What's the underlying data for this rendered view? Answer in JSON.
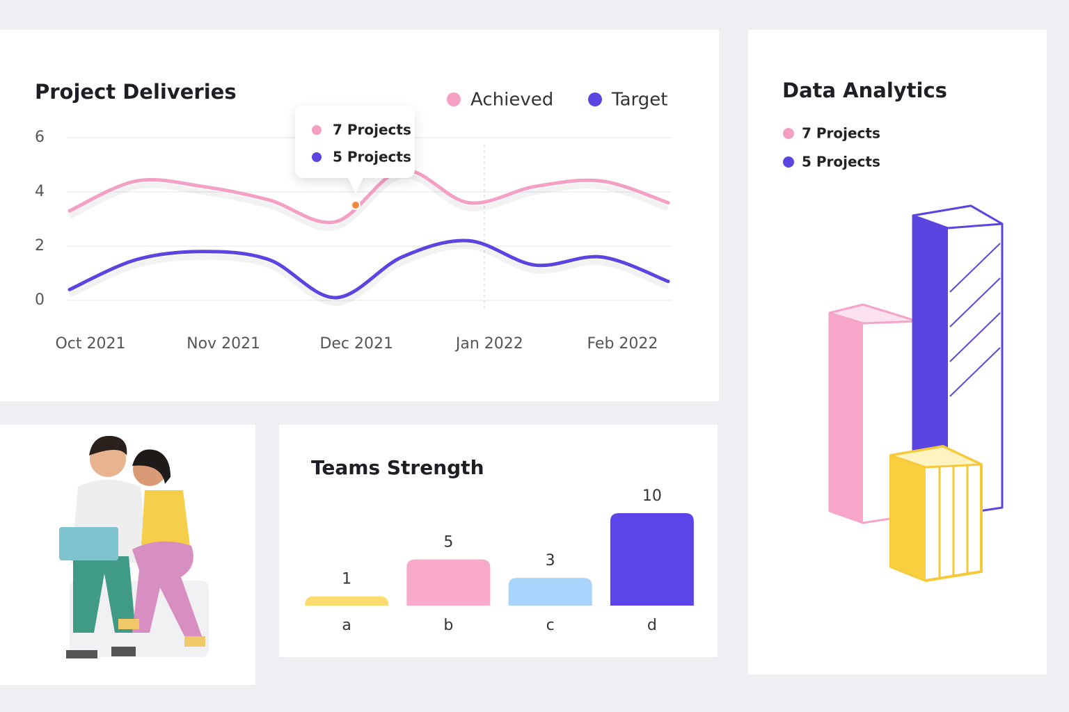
{
  "chart_data": [
    {
      "type": "line",
      "title": "Project Deliveries",
      "x": [
        "Oct 2021",
        null,
        "Nov 2021",
        null,
        "Dec 2021",
        null,
        "Jan 2022",
        null,
        "Feb 2022",
        null
      ],
      "series": [
        {
          "name": "Achieved",
          "color": "#f4a0c4",
          "values": [
            3.3,
            4.4,
            4.2,
            3.7,
            2.9,
            4.8,
            3.6,
            4.2,
            4.4,
            3.6
          ]
        },
        {
          "name": "Target",
          "color": "#5b45e0",
          "values": [
            0.4,
            1.5,
            1.8,
            1.5,
            0.1,
            1.6,
            2.2,
            1.3,
            1.6,
            0.7
          ]
        }
      ],
      "ylim": [
        0,
        6
      ],
      "yticks": [
        0,
        2,
        4,
        6
      ],
      "grid": true,
      "annotations": [
        "7 Projects",
        "5 Projects"
      ]
    },
    {
      "type": "bar",
      "title": "Teams Strength",
      "categories": [
        "a",
        "b",
        "c",
        "d"
      ],
      "values": [
        1,
        5,
        3,
        10
      ],
      "colors": [
        "#fcdc6e",
        "#f9a9c9",
        "#a8d3fa",
        "#5b45e8"
      ]
    }
  ],
  "data_analytics": {
    "title": "Data Analytics",
    "items": [
      {
        "label": "7 Projects",
        "color": "#f4a0c4"
      },
      {
        "label": "5 Projects",
        "color": "#5b45e0"
      }
    ]
  }
}
